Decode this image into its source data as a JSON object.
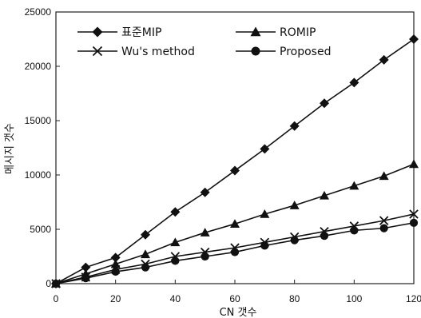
{
  "chart_data": {
    "type": "line",
    "title": "",
    "xlabel": "CN 갯수",
    "ylabel": "메시지 갯수",
    "xlim": [
      0,
      120
    ],
    "ylim": [
      0,
      25000
    ],
    "x_ticks": [
      "0",
      "20",
      "40",
      "60",
      "80",
      "100",
      "120"
    ],
    "y_ticks": [
      "0",
      "5000",
      "10000",
      "15000",
      "20000",
      "25000"
    ],
    "grid": false,
    "legend_position": "top-left, two columns",
    "x": [
      0,
      10,
      20,
      30,
      40,
      50,
      60,
      70,
      80,
      90,
      100,
      110,
      120
    ],
    "series": [
      {
        "name": "표준MIP",
        "marker": "diamond",
        "values": [
          0,
          1500,
          2400,
          4500,
          6600,
          8400,
          10400,
          12400,
          14500,
          16600,
          18500,
          20600,
          22500
        ]
      },
      {
        "name": "ROMIP",
        "marker": "triangle",
        "values": [
          0,
          900,
          1800,
          2700,
          3800,
          4700,
          5500,
          6400,
          7200,
          8100,
          9000,
          9900,
          11000
        ]
      },
      {
        "name": "Wu's method",
        "marker": "x",
        "values": [
          0,
          600,
          1300,
          1800,
          2500,
          2900,
          3300,
          3800,
          4300,
          4800,
          5300,
          5800,
          6400
        ]
      },
      {
        "name": "Proposed",
        "marker": "circle",
        "values": [
          0,
          500,
          1100,
          1500,
          2100,
          2500,
          2900,
          3500,
          4000,
          4400,
          4900,
          5100,
          5600
        ]
      }
    ]
  }
}
